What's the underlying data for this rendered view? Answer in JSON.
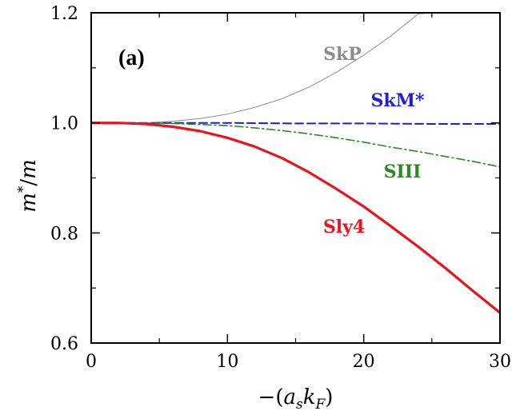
{
  "chart_data": {
    "type": "line",
    "panel_label": "(a)",
    "xlabel": "−(a_s k_F)",
    "ylabel": "m*/m",
    "xlim": [
      0,
      30
    ],
    "ylim": [
      0.6,
      1.2
    ],
    "x_ticks": [
      0,
      10,
      20,
      30
    ],
    "y_ticks": [
      0.6,
      0.8,
      1.0,
      1.2
    ],
    "x_tick_labels": [
      "0",
      "10",
      "20",
      "30"
    ],
    "y_tick_labels": [
      "0.6",
      "0.8",
      "1.0",
      "1.2"
    ],
    "grid": false,
    "series": [
      {
        "name": "SkP",
        "color": "#8c8c8c",
        "style": "solid-thin",
        "x": [
          0,
          4,
          6,
          8,
          10,
          12,
          14,
          16,
          18,
          20,
          22,
          24,
          25
        ],
        "values": [
          1.0,
          1.0,
          1.003,
          1.008,
          1.016,
          1.028,
          1.044,
          1.065,
          1.092,
          1.123,
          1.158,
          1.198,
          1.2
        ]
      },
      {
        "name": "SkM*",
        "color": "#1f1fd6",
        "style": "dashed",
        "x": [
          0,
          5,
          10,
          15,
          20,
          25,
          30
        ],
        "values": [
          1.0,
          1.0,
          1.0,
          0.999,
          0.999,
          0.998,
          0.998
        ]
      },
      {
        "name": "SIII",
        "color": "#2a8a22",
        "style": "dash-dot",
        "x": [
          0,
          4,
          6,
          8,
          10,
          12,
          14,
          16,
          18,
          20,
          22,
          24,
          26,
          28,
          30
        ],
        "values": [
          1.0,
          1.0,
          0.999,
          0.997,
          0.995,
          0.991,
          0.986,
          0.98,
          0.973,
          0.965,
          0.956,
          0.948,
          0.939,
          0.93,
          0.92
        ]
      },
      {
        "name": "Sly4",
        "color": "#e8141e",
        "style": "solid-thick",
        "x": [
          0,
          2,
          4,
          6,
          8,
          10,
          12,
          14,
          16,
          18,
          20,
          22,
          24,
          26,
          28,
          30
        ],
        "values": [
          1.0,
          1.0,
          0.998,
          0.993,
          0.985,
          0.973,
          0.957,
          0.936,
          0.91,
          0.88,
          0.848,
          0.812,
          0.775,
          0.736,
          0.695,
          0.655
        ]
      }
    ]
  }
}
